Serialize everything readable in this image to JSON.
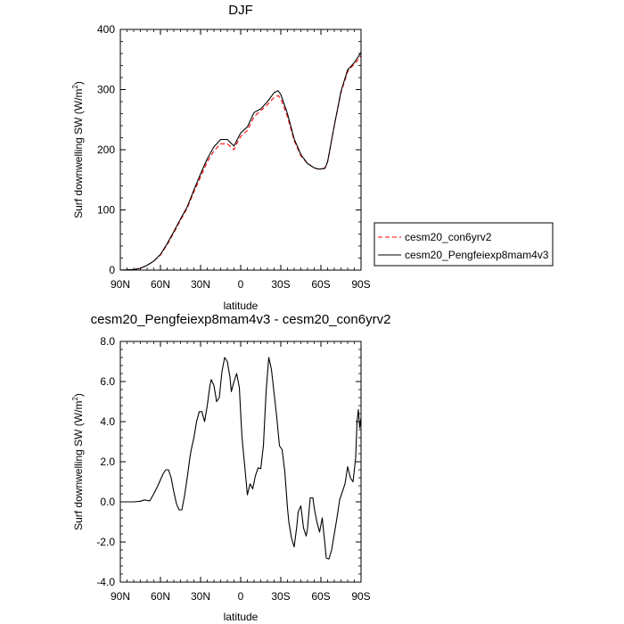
{
  "chart_data": [
    {
      "type": "line",
      "title": "DJF",
      "xlabel": "latitude",
      "ylabel": "Surf downwelling SW (W/m",
      "ylabel_sup": "2",
      "ylabel_close": ")",
      "xlim": [
        90,
        -90
      ],
      "ylim": [
        0,
        400
      ],
      "xticks": [
        {
          "value": 90,
          "label": "90N"
        },
        {
          "value": 60,
          "label": "60N"
        },
        {
          "value": 30,
          "label": "30N"
        },
        {
          "value": 0,
          "label": "0"
        },
        {
          "value": -30,
          "label": "30S"
        },
        {
          "value": -60,
          "label": "60S"
        },
        {
          "value": -90,
          "label": "90S"
        }
      ],
      "yticks": [
        {
          "value": 0,
          "label": "0"
        },
        {
          "value": 100,
          "label": "100"
        },
        {
          "value": 200,
          "label": "200"
        },
        {
          "value": 300,
          "label": "300"
        },
        {
          "value": 400,
          "label": "400"
        }
      ],
      "legend": "right",
      "series": [
        {
          "name": "cesm20_con6yrv2",
          "color": "#ff0000",
          "dashed": true,
          "x": [
            90,
            80,
            75,
            70,
            65,
            60,
            55,
            50,
            45,
            40,
            35,
            30,
            25,
            20,
            15,
            10,
            5,
            3,
            0,
            -5,
            -10,
            -15,
            -20,
            -25,
            -28,
            -30,
            -35,
            -40,
            -45,
            -50,
            -55,
            -58,
            -60,
            -63,
            -65,
            -70,
            -75,
            -80,
            -83,
            -85,
            -88,
            -90
          ],
          "y": [
            0,
            1,
            3,
            8,
            15,
            25,
            42,
            62,
            83,
            103,
            130,
            155,
            180,
            198,
            210,
            210,
            200,
            210,
            222,
            232,
            255,
            265,
            275,
            287,
            290,
            285,
            255,
            215,
            190,
            177,
            170,
            168,
            168,
            170,
            180,
            240,
            295,
            330,
            338,
            342,
            350,
            357
          ]
        },
        {
          "name": "cesm20_Pengfeiexp8mam4v3",
          "color": "#000000",
          "dashed": false,
          "x": [
            90,
            80,
            75,
            70,
            65,
            60,
            55,
            50,
            45,
            40,
            35,
            30,
            25,
            20,
            15,
            10,
            5,
            3,
            0,
            -5,
            -10,
            -15,
            -20,
            -25,
            -28,
            -30,
            -35,
            -40,
            -45,
            -50,
            -55,
            -58,
            -60,
            -63,
            -65,
            -70,
            -75,
            -80,
            -83,
            -85,
            -88,
            -90
          ],
          "y": [
            0,
            1,
            3,
            8,
            15,
            26,
            44,
            64,
            85,
            105,
            133,
            160,
            185,
            205,
            217,
            217,
            206,
            215,
            228,
            238,
            262,
            268,
            280,
            295,
            298,
            292,
            260,
            218,
            192,
            177,
            170,
            168,
            168,
            169,
            180,
            240,
            297,
            333,
            340,
            345,
            355,
            362
          ]
        }
      ]
    },
    {
      "type": "line",
      "title": "cesm20_Pengfeiexp8mam4v3 - cesm20_con6yrv2",
      "xlabel": "latitude",
      "ylabel": "Surf downwelling SW (W/m",
      "ylabel_sup": "2",
      "ylabel_close": ")",
      "xlim": [
        90,
        -90
      ],
      "ylim": [
        -4,
        8
      ],
      "xticks": [
        {
          "value": 90,
          "label": "90N"
        },
        {
          "value": 60,
          "label": "60N"
        },
        {
          "value": 30,
          "label": "30N"
        },
        {
          "value": 0,
          "label": "0"
        },
        {
          "value": -30,
          "label": "30S"
        },
        {
          "value": -60,
          "label": "60S"
        },
        {
          "value": -90,
          "label": "90S"
        }
      ],
      "yticks": [
        {
          "value": 8,
          "label": "8.0"
        },
        {
          "value": 6,
          "label": "6.0"
        },
        {
          "value": 4,
          "label": "4.0"
        },
        {
          "value": 2,
          "label": "2.0"
        },
        {
          "value": 0,
          "label": "0.0"
        },
        {
          "value": -2,
          "label": "-2.0"
        },
        {
          "value": -4,
          "label": "-4.0"
        }
      ],
      "series": [
        {
          "color": "#000000",
          "x": [
            90,
            80,
            75,
            72,
            68,
            65,
            62,
            58,
            56,
            54,
            52,
            50,
            48,
            46,
            44,
            42,
            40,
            38,
            37,
            35,
            33,
            31,
            29,
            27,
            25,
            23,
            22,
            20,
            18,
            16,
            14,
            12,
            10,
            8,
            7,
            5,
            3,
            1,
            0,
            -1,
            -3,
            -5,
            -7,
            -9,
            -11,
            -13,
            -15,
            -17,
            -19,
            -21,
            -23,
            -25,
            -27,
            -29,
            -31,
            -33,
            -35,
            -36,
            -38,
            -40,
            -42,
            -43,
            -45,
            -47,
            -49,
            -50,
            -52,
            -54,
            -55,
            -57,
            -59,
            -61,
            -63,
            -64,
            -66,
            -68,
            -70,
            -72,
            -74,
            -76,
            -78,
            -80,
            -82,
            -84,
            -86,
            -87,
            -88,
            -89,
            -90
          ],
          "y": [
            0,
            0,
            0.03,
            0.1,
            0.05,
            0.4,
            0.8,
            1.4,
            1.6,
            1.6,
            1.2,
            0.5,
            -0.1,
            -0.4,
            -0.4,
            0.3,
            1.2,
            2.2,
            2.6,
            3.2,
            4.0,
            4.5,
            4.5,
            4.0,
            4.8,
            5.8,
            6.1,
            5.8,
            5.0,
            5.2,
            6.5,
            7.2,
            7.0,
            6.2,
            5.5,
            6.0,
            6.4,
            5.7,
            4.4,
            3.2,
            1.8,
            0.35,
            0.9,
            0.65,
            1.3,
            1.7,
            1.65,
            2.8,
            5.5,
            7.2,
            6.6,
            5.4,
            4.2,
            2.8,
            2.6,
            1.5,
            -0.3,
            -1.0,
            -1.8,
            -2.25,
            -1.2,
            -0.5,
            -0.2,
            -1.3,
            -1.7,
            -1.3,
            0.2,
            0.2,
            -0.3,
            -1.0,
            -1.5,
            -0.8,
            -2.1,
            -2.8,
            -2.85,
            -2.4,
            -1.6,
            -0.8,
            0.1,
            0.5,
            0.9,
            1.75,
            1.2,
            1.0,
            2.2,
            4.0,
            4.6,
            3.7,
            4.2
          ]
        }
      ]
    }
  ],
  "legend_entries": [
    {
      "label": "cesm20_con6yrv2",
      "color": "#ff0000",
      "dashed": true
    },
    {
      "label": "cesm20_Pengfeiexp8mam4v3",
      "color": "#000000",
      "dashed": false
    }
  ]
}
